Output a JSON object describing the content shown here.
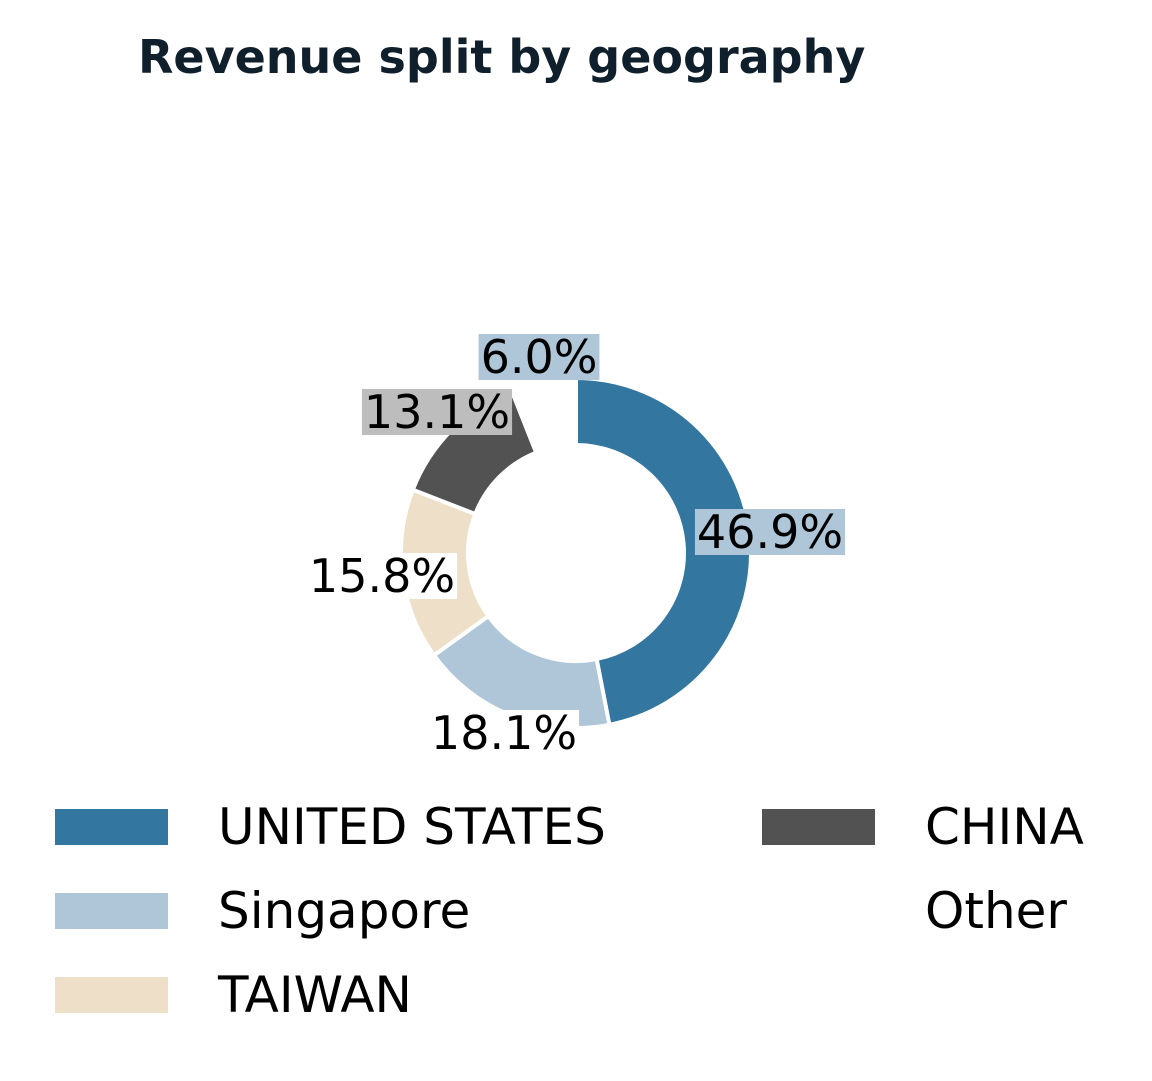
{
  "chart_data": {
    "type": "pie",
    "variant": "donut",
    "title": "Revenue split by geography",
    "categories": [
      "UNITED STATES",
      "Singapore",
      "TAIWAN",
      "CHINA",
      "Other"
    ],
    "values": [
      46.9,
      18.1,
      15.8,
      13.1,
      6.0
    ],
    "value_labels": [
      "46.9%",
      "18.1%",
      "15.8%",
      "13.1%",
      "6.0%"
    ],
    "colors": [
      "#33769f",
      "#aec6d8",
      "#eedfc8",
      "#525252",
      "#ffffff"
    ],
    "label_backgrounds": [
      "#aec6d8",
      "#ffffff",
      "#ffffff",
      "#bdbdbd",
      "#aec6d8"
    ],
    "legend_placement": "bottom",
    "legend_columns": 2
  }
}
